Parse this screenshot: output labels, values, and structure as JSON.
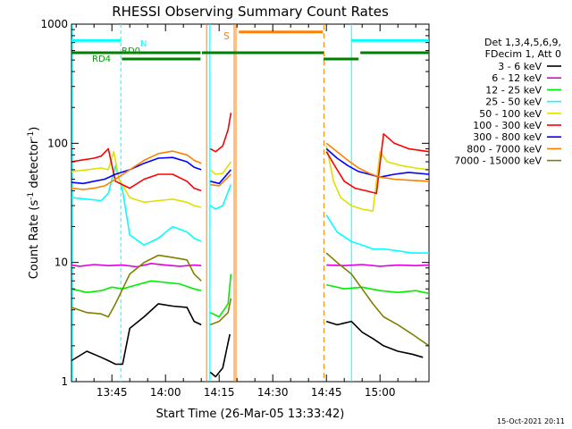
{
  "chart_data": {
    "type": "line",
    "title": "RHESSI Observing Summary Count Rates",
    "xlabel": "Start Time (26-Mar-05 13:33:42)",
    "ylabel_main": "Count Rate (s",
    "ylabel_sup1": "-1",
    "ylabel_mid": " detector",
    "ylabel_sup2": "-1",
    "ylabel_end": ")",
    "yscale": "log",
    "ylim": [
      1,
      1000
    ],
    "xlim_minutes": [
      33.7,
      133.7
    ],
    "yticks": [
      {
        "value": 1,
        "label": "1"
      },
      {
        "value": 10,
        "label": "10"
      },
      {
        "value": 100,
        "label": "100"
      },
      {
        "value": 1000,
        "label": "1000"
      }
    ],
    "xticks": [
      {
        "value": 45,
        "label": "13:45"
      },
      {
        "value": 60,
        "label": "14:00"
      },
      {
        "value": 75,
        "label": "14:15"
      },
      {
        "value": 90,
        "label": "14:30"
      },
      {
        "value": 105,
        "label": "14:45"
      },
      {
        "value": 120,
        "label": "15:00"
      }
    ],
    "legend_placement": "right",
    "legend_header": [
      "Det 1,3,4,5,6,9,",
      "FDecim 1, Att 0"
    ],
    "series": [
      {
        "name": "3 - 6 keV",
        "color": "#000000",
        "segments": [
          {
            "t": [
              33.7,
              38,
              42,
              44,
              46,
              48,
              50,
              54,
              58,
              62,
              66,
              68,
              70
            ],
            "y": [
              1.5,
              1.8,
              1.6,
              1.5,
              1.4,
              1.4,
              2.8,
              3.5,
              4.5,
              4.3,
              4.2,
              3.2,
              3.0
            ]
          },
          {
            "t": [
              72.5,
              74,
              76,
              78
            ],
            "y": [
              1.2,
              1.1,
              1.3,
              2.5
            ]
          },
          {
            "t": [
              105,
              108,
              112,
              115,
              118,
              121,
              125,
              129,
              132
            ],
            "y": [
              3.2,
              3.0,
              3.2,
              2.6,
              2.3,
              2.0,
              1.8,
              1.7,
              1.6
            ]
          }
        ]
      },
      {
        "name": "6 - 12 keV",
        "color": "#e000e0",
        "segments": [
          {
            "t": [
              33.7,
              36,
              40,
              44,
              48,
              52,
              56,
              60,
              64,
              68,
              70
            ],
            "y": [
              9.5,
              9.3,
              9.6,
              9.4,
              9.5,
              9.2,
              9.8,
              9.5,
              9.3,
              9.5,
              9.4
            ]
          },
          {
            "t": [
              105,
              110,
              115,
              120,
              125,
              130,
              133.7
            ],
            "y": [
              9.5,
              9.4,
              9.6,
              9.3,
              9.5,
              9.4,
              9.5
            ]
          }
        ]
      },
      {
        "name": "12 - 25 keV",
        "color": "#00ee00",
        "segments": [
          {
            "t": [
              33.7,
              38,
              42,
              45,
              48,
              52,
              56,
              60,
              64,
              68,
              70
            ],
            "y": [
              6,
              5.6,
              5.8,
              6.2,
              6.0,
              6.5,
              7.0,
              6.8,
              6.6,
              6.0,
              5.8
            ]
          },
          {
            "t": [
              72.5,
              75,
              77.5,
              78.3
            ],
            "y": [
              3.8,
              3.5,
              4.5,
              8.0
            ]
          },
          {
            "t": [
              105,
              110,
              115,
              120,
              125,
              130,
              133.7
            ],
            "y": [
              6.5,
              6.0,
              6.2,
              5.8,
              5.6,
              5.8,
              5.5
            ]
          }
        ]
      },
      {
        "name": "25 - 50 keV",
        "color": "#00ffff",
        "segments": [
          {
            "t": [
              33.7,
              38,
              42,
              44,
              46,
              48,
              50,
              54,
              58,
              62,
              66,
              68,
              70
            ],
            "y": [
              35,
              34,
              33,
              38,
              65,
              40,
              17,
              14,
              16,
              20,
              18,
              16,
              15
            ]
          },
          {
            "t": [
              72.5,
              74,
              76,
              78.3
            ],
            "y": [
              30,
              28,
              30,
              45
            ]
          },
          {
            "t": [
              105,
              108,
              112,
              115,
              118,
              121,
              125,
              129,
              133.7
            ],
            "y": [
              25,
              18,
              15,
              14,
              13,
              13,
              12.5,
              12,
              12
            ]
          }
        ]
      },
      {
        "name": "50 - 100 keV",
        "color": "#e0e000",
        "segments": [
          {
            "t": [
              33.7,
              38,
              42,
              44,
              45.5,
              47,
              50,
              54,
              58,
              62,
              66,
              68,
              70
            ],
            "y": [
              58,
              60,
              62,
              60,
              85,
              50,
              35,
              32,
              33,
              34,
              32,
              30,
              29
            ]
          },
          {
            "t": [
              72.5,
              74,
              76,
              78.3
            ],
            "y": [
              60,
              55,
              56,
              70
            ]
          },
          {
            "t": [
              105,
              107,
              109,
              112,
              115,
              118,
              120,
              122,
              126,
              130,
              133.7
            ],
            "y": [
              95,
              48,
              35,
              30,
              28,
              27,
              85,
              70,
              65,
              62,
              60
            ]
          }
        ]
      },
      {
        "name": "100 - 300 keV",
        "color": "#ff0000",
        "segments": [
          {
            "t": [
              33.7,
              36,
              40,
              42,
              44,
              46,
              50,
              54,
              58,
              62,
              66,
              68,
              70
            ],
            "y": [
              70,
              72,
              75,
              78,
              90,
              48,
              42,
              50,
              55,
              55,
              48,
              42,
              40
            ]
          },
          {
            "t": [
              72.5,
              74,
              76,
              77.5,
              78.3
            ],
            "y": [
              90,
              85,
              95,
              130,
              180
            ]
          },
          {
            "t": [
              105,
              108,
              110,
              113,
              116,
              119,
              121,
              124,
              128,
              133.7
            ],
            "y": [
              85,
              60,
              48,
              42,
              40,
              38,
              120,
              100,
              90,
              85
            ]
          }
        ]
      },
      {
        "name": "300 - 800 keV",
        "color": "#0000ff",
        "segments": [
          {
            "t": [
              33.7,
              37,
              40,
              43,
              46,
              50,
              54,
              58,
              62,
              66,
              68,
              70
            ],
            "y": [
              47,
              46,
              48,
              50,
              55,
              60,
              68,
              75,
              76,
              70,
              63,
              60
            ]
          },
          {
            "t": [
              72.5,
              75,
              78.3
            ],
            "y": [
              48,
              46,
              60
            ]
          },
          {
            "t": [
              105,
              108,
              111,
              114,
              117,
              120,
              124,
              128,
              133.7
            ],
            "y": [
              90,
              75,
              65,
              58,
              55,
              52,
              55,
              57,
              55
            ]
          }
        ]
      },
      {
        "name": "800 - 7000 keV",
        "color": "#ff8000",
        "segments": [
          {
            "t": [
              33.7,
              37,
              40,
              43,
              46,
              50,
              54,
              58,
              62,
              66,
              68,
              70
            ],
            "y": [
              42,
              41,
              42,
              44,
              50,
              60,
              72,
              82,
              86,
              80,
              72,
              68
            ]
          },
          {
            "t": [
              72.5,
              75,
              78.3
            ],
            "y": [
              45,
              44,
              55
            ]
          },
          {
            "t": [
              105,
              108,
              111,
              114,
              117,
              120,
              124,
              128,
              133.7
            ],
            "y": [
              100,
              85,
              72,
              62,
              56,
              52,
              50,
              49,
              48
            ]
          }
        ]
      },
      {
        "name": "7000 - 15000 keV",
        "color": "#808000",
        "segments": [
          {
            "t": [
              33.7,
              38,
              42,
              44,
              46,
              48,
              50,
              54,
              58,
              62,
              66,
              68,
              70
            ],
            "y": [
              4.2,
              3.8,
              3.7,
              3.5,
              4.5,
              6.0,
              8.0,
              10,
              11.5,
              11,
              10.5,
              8.0,
              7.0
            ]
          },
          {
            "t": [
              72.5,
              75,
              77.5,
              78.3
            ],
            "y": [
              3.0,
              3.2,
              3.8,
              5.0
            ]
          },
          {
            "t": [
              105,
              108,
              112,
              115,
              118,
              121,
              125,
              129,
              133.7
            ],
            "y": [
              12,
              10,
              8.0,
              6.0,
              4.5,
              3.5,
              3.0,
              2.5,
              2.0
            ]
          }
        ]
      }
    ],
    "annotations": [
      {
        "label": "N",
        "color": "#00ffff"
      },
      {
        "label": "RD0",
        "color": "#00a000"
      },
      {
        "label": "RD4",
        "color": "#00a000"
      },
      {
        "label": "S",
        "color": "#ff8000"
      }
    ],
    "footer_timestamp": "15-Oct-2021 20:11"
  }
}
